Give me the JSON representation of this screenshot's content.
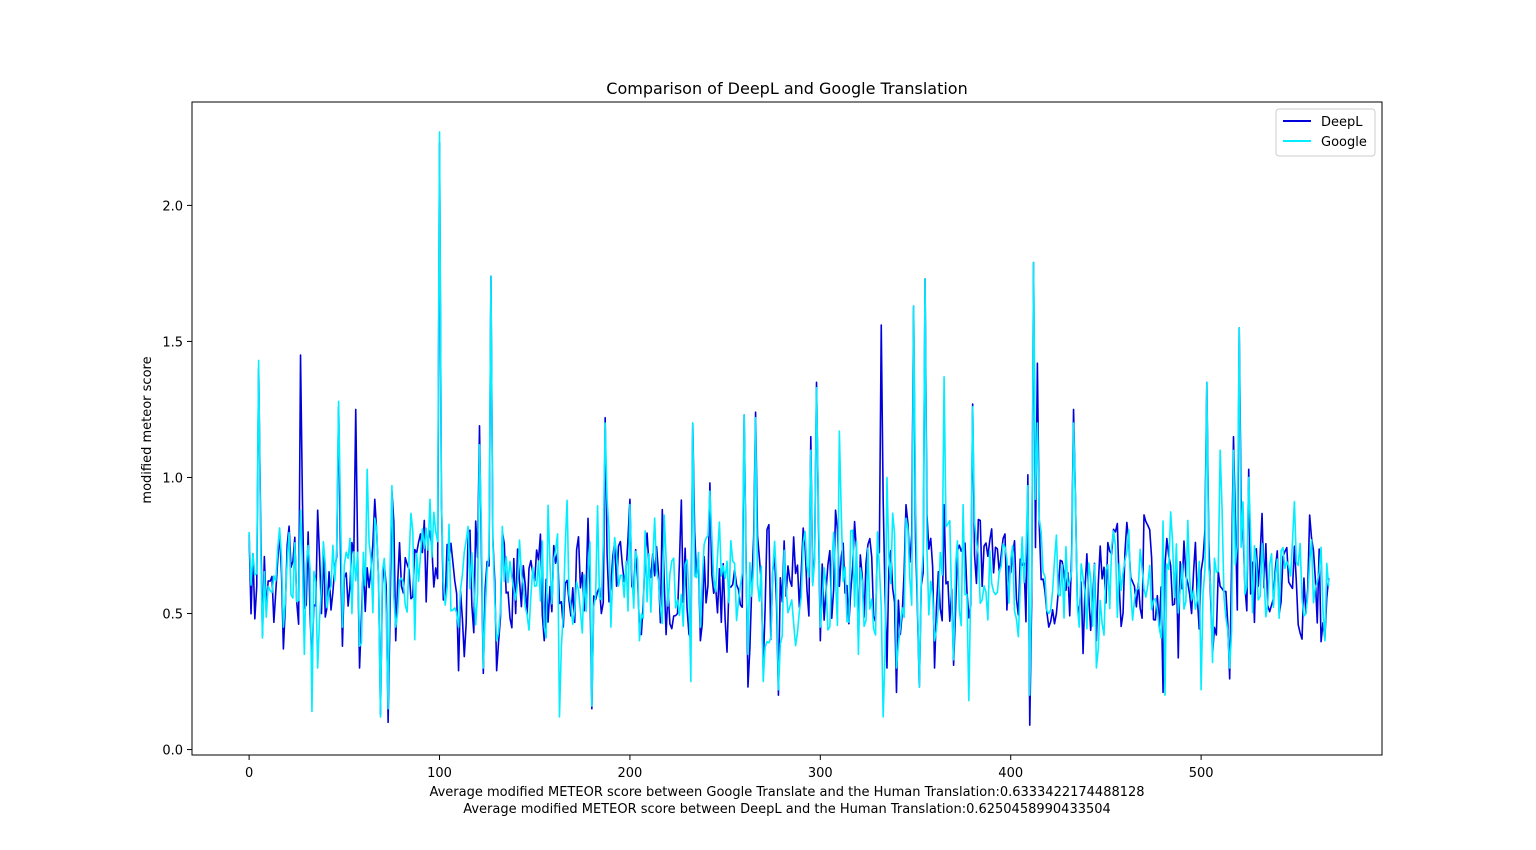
{
  "chart_data": {
    "type": "line",
    "title": "Comparison of DeepL and Google Translation",
    "xlabel": "Average modified METEOR score between Google Translate and the Human Translation:0.6333422174488128",
    "xlabel_line2": "Average modified METEOR score between DeepL and the Human Translation:0.6250458990433504",
    "ylabel": "modified meteor score",
    "xlim": [
      -30,
      595
    ],
    "ylim": [
      -0.02,
      2.38
    ],
    "x_ticks": [
      0,
      100,
      200,
      300,
      400,
      500
    ],
    "y_ticks": [
      0.0,
      0.5,
      1.0,
      1.5,
      2.0
    ],
    "x_tick_labels": [
      "0",
      "100",
      "200",
      "300",
      "400",
      "500"
    ],
    "y_tick_labels": [
      "0.0",
      "0.5",
      "1.0",
      "1.5",
      "2.0"
    ],
    "legend_position": "top-right",
    "grid": false,
    "n_points": 568,
    "series": [
      {
        "name": "DeepL",
        "color": "#0000dd",
        "keypoints": [
          [
            0,
            0.79
          ],
          [
            2,
            0.72
          ],
          [
            5,
            1.4
          ],
          [
            7,
            0.42
          ],
          [
            10,
            0.62
          ],
          [
            14,
            0.58
          ],
          [
            18,
            0.37
          ],
          [
            24,
            0.78
          ],
          [
            27,
            1.45
          ],
          [
            29,
            0.52
          ],
          [
            31,
            0.8
          ],
          [
            33,
            0.32
          ],
          [
            36,
            0.88
          ],
          [
            38,
            0.5
          ],
          [
            45,
            0.67
          ],
          [
            47,
            1.26
          ],
          [
            49,
            0.38
          ],
          [
            56,
            1.25
          ],
          [
            58,
            0.3
          ],
          [
            64,
            0.66
          ],
          [
            66,
            0.92
          ],
          [
            69,
            0.13
          ],
          [
            72,
            0.6
          ],
          [
            73,
            0.1
          ],
          [
            75,
            0.95
          ],
          [
            77,
            0.4
          ],
          [
            80,
            0.6
          ],
          [
            100,
            2.23
          ],
          [
            102,
            0.55
          ],
          [
            110,
            0.29
          ],
          [
            115,
            0.8
          ],
          [
            121,
            1.19
          ],
          [
            123,
            0.28
          ],
          [
            127,
            1.74
          ],
          [
            130,
            0.29
          ],
          [
            133,
            0.8
          ],
          [
            140,
            0.5
          ],
          [
            150,
            0.62
          ],
          [
            155,
            0.4
          ],
          [
            160,
            0.75
          ],
          [
            165,
            0.45
          ],
          [
            178,
            0.85
          ],
          [
            180,
            0.15
          ],
          [
            185,
            0.5
          ],
          [
            187,
            1.22
          ],
          [
            190,
            0.6
          ],
          [
            200,
            0.92
          ],
          [
            205,
            0.45
          ],
          [
            215,
            0.65
          ],
          [
            225,
            0.5
          ],
          [
            233,
            1.2
          ],
          [
            237,
            0.4
          ],
          [
            242,
            0.98
          ],
          [
            245,
            0.6
          ],
          [
            260,
            1.23
          ],
          [
            262,
            0.23
          ],
          [
            266,
            1.24
          ],
          [
            270,
            0.3
          ],
          [
            278,
            0.2
          ],
          [
            285,
            0.6
          ],
          [
            295,
            1.15
          ],
          [
            298,
            1.35
          ],
          [
            300,
            0.4
          ],
          [
            310,
            0.6
          ],
          [
            320,
            0.4
          ],
          [
            330,
            0.75
          ],
          [
            332,
            1.56
          ],
          [
            335,
            0.3
          ],
          [
            340,
            0.21
          ],
          [
            345,
            0.9
          ],
          [
            349,
            1.63
          ],
          [
            352,
            0.23
          ],
          [
            355,
            1.73
          ],
          [
            360,
            0.3
          ],
          [
            365,
            0.9
          ],
          [
            370,
            0.31
          ],
          [
            375,
            0.75
          ],
          [
            380,
            1.27
          ],
          [
            385,
            0.6
          ],
          [
            400,
            0.65
          ],
          [
            405,
            0.7
          ],
          [
            409,
            1.01
          ],
          [
            410,
            0.09
          ],
          [
            412,
            1.79
          ],
          [
            414,
            1.42
          ],
          [
            420,
            0.45
          ],
          [
            430,
            0.65
          ],
          [
            433,
            1.25
          ],
          [
            436,
            0.5
          ],
          [
            445,
            0.4
          ],
          [
            455,
            0.8
          ],
          [
            465,
            0.6
          ],
          [
            480,
            0.21
          ],
          [
            495,
            0.5
          ],
          [
            503,
            1.35
          ],
          [
            506,
            0.35
          ],
          [
            510,
            0.6
          ],
          [
            515,
            0.26
          ],
          [
            517,
            1.15
          ],
          [
            520,
            1.55
          ],
          [
            525,
            1.03
          ],
          [
            530,
            0.6
          ],
          [
            540,
            0.73
          ],
          [
            555,
            0.5
          ],
          [
            565,
            0.41
          ],
          [
            567,
            0.63
          ]
        ]
      },
      {
        "name": "Google",
        "color": "#00eeff",
        "keypoints": [
          [
            0,
            0.8
          ],
          [
            2,
            0.72
          ],
          [
            5,
            1.43
          ],
          [
            7,
            0.41
          ],
          [
            10,
            0.6
          ],
          [
            14,
            0.62
          ],
          [
            18,
            0.45
          ],
          [
            24,
            0.76
          ],
          [
            27,
            0.88
          ],
          [
            29,
            0.35
          ],
          [
            31,
            0.75
          ],
          [
            33,
            0.14
          ],
          [
            36,
            0.3
          ],
          [
            38,
            0.6
          ],
          [
            45,
            0.62
          ],
          [
            47,
            1.28
          ],
          [
            49,
            0.45
          ],
          [
            56,
            0.62
          ],
          [
            58,
            0.38
          ],
          [
            62,
            1.03
          ],
          [
            66,
            0.85
          ],
          [
            69,
            0.12
          ],
          [
            72,
            0.5
          ],
          [
            73,
            0.15
          ],
          [
            75,
            0.97
          ],
          [
            77,
            0.45
          ],
          [
            80,
            0.63
          ],
          [
            95,
            0.92
          ],
          [
            100,
            2.27
          ],
          [
            102,
            0.62
          ],
          [
            110,
            0.45
          ],
          [
            115,
            0.82
          ],
          [
            121,
            1.12
          ],
          [
            123,
            0.3
          ],
          [
            127,
            1.74
          ],
          [
            130,
            0.4
          ],
          [
            133,
            0.82
          ],
          [
            140,
            0.55
          ],
          [
            150,
            0.6
          ],
          [
            155,
            0.45
          ],
          [
            160,
            0.7
          ],
          [
            163,
            0.12
          ],
          [
            165,
            0.5
          ],
          [
            178,
            0.65
          ],
          [
            180,
            0.16
          ],
          [
            185,
            0.55
          ],
          [
            187,
            1.2
          ],
          [
            190,
            0.45
          ],
          [
            200,
            0.9
          ],
          [
            205,
            0.4
          ],
          [
            215,
            0.62
          ],
          [
            225,
            0.55
          ],
          [
            232,
            0.25
          ],
          [
            233,
            1.2
          ],
          [
            237,
            0.45
          ],
          [
            242,
            0.95
          ],
          [
            245,
            0.58
          ],
          [
            260,
            1.23
          ],
          [
            262,
            0.35
          ],
          [
            266,
            1.22
          ],
          [
            270,
            0.25
          ],
          [
            278,
            0.22
          ],
          [
            285,
            0.55
          ],
          [
            295,
            1.1
          ],
          [
            298,
            1.33
          ],
          [
            300,
            0.45
          ],
          [
            310,
            1.17
          ],
          [
            320,
            0.35
          ],
          [
            330,
            0.8
          ],
          [
            333,
            0.12
          ],
          [
            335,
            1.0
          ],
          [
            340,
            0.3
          ],
          [
            345,
            0.85
          ],
          [
            349,
            1.63
          ],
          [
            352,
            0.23
          ],
          [
            355,
            1.73
          ],
          [
            360,
            0.4
          ],
          [
            365,
            1.37
          ],
          [
            370,
            0.33
          ],
          [
            375,
            0.9
          ],
          [
            378,
            0.18
          ],
          [
            380,
            1.26
          ],
          [
            385,
            0.55
          ],
          [
            400,
            0.7
          ],
          [
            405,
            0.6
          ],
          [
            409,
            0.97
          ],
          [
            410,
            0.2
          ],
          [
            412,
            1.79
          ],
          [
            414,
            1.2
          ],
          [
            420,
            0.5
          ],
          [
            430,
            0.6
          ],
          [
            433,
            1.2
          ],
          [
            436,
            0.45
          ],
          [
            445,
            0.3
          ],
          [
            455,
            0.75
          ],
          [
            465,
            0.55
          ],
          [
            480,
            0.84
          ],
          [
            481,
            0.2
          ],
          [
            495,
            0.55
          ],
          [
            500,
            0.22
          ],
          [
            503,
            1.35
          ],
          [
            506,
            0.32
          ],
          [
            510,
            1.1
          ],
          [
            515,
            0.3
          ],
          [
            517,
            1.1
          ],
          [
            520,
            1.55
          ],
          [
            525,
            1.0
          ],
          [
            530,
            0.55
          ],
          [
            540,
            0.7
          ],
          [
            555,
            0.5
          ],
          [
            565,
            0.4
          ],
          [
            567,
            0.6
          ]
        ]
      }
    ]
  }
}
